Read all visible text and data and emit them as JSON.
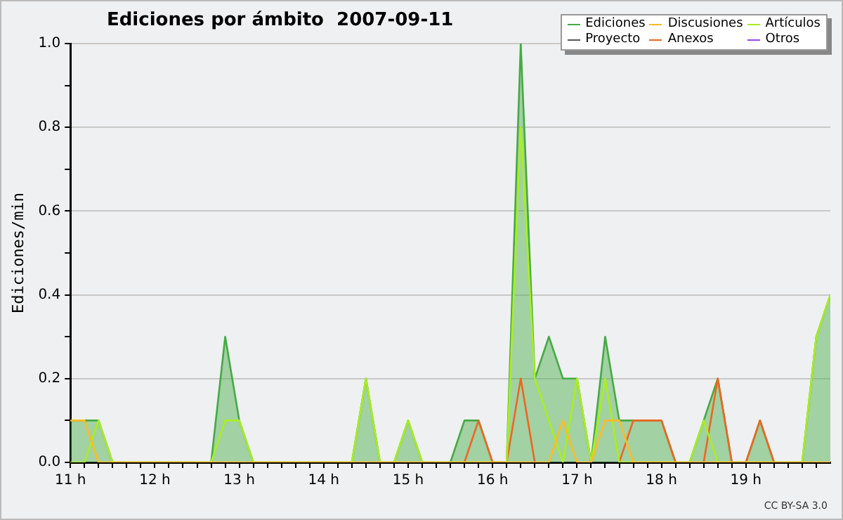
{
  "chart_data": {
    "type": "line",
    "title": "Ediciones por ámbito  2007-09-11",
    "ylabel": "Ediciones/min",
    "annotations": [
      "CC BY-SA 3.0"
    ],
    "legend": "top right",
    "grid": "y",
    "marker": "none",
    "xlim": [
      11,
      20
    ],
    "ylim": [
      0,
      1
    ],
    "xticks": [
      {
        "value": 11,
        "label": "11 h"
      },
      {
        "value": 11.1667,
        "label": null
      },
      {
        "value": 11.3333,
        "label": null
      },
      {
        "value": 11.5,
        "label": null
      },
      {
        "value": 11.6667,
        "label": null
      },
      {
        "value": 11.8333,
        "label": null
      },
      {
        "value": 12,
        "label": "12 h"
      },
      {
        "value": 12.1667,
        "label": null
      },
      {
        "value": 12.3333,
        "label": null
      },
      {
        "value": 12.5,
        "label": null
      },
      {
        "value": 12.6667,
        "label": null
      },
      {
        "value": 12.8333,
        "label": null
      },
      {
        "value": 13,
        "label": "13 h"
      },
      {
        "value": 13.1667,
        "label": null
      },
      {
        "value": 13.3333,
        "label": null
      },
      {
        "value": 13.5,
        "label": null
      },
      {
        "value": 13.6667,
        "label": null
      },
      {
        "value": 13.8333,
        "label": null
      },
      {
        "value": 14,
        "label": "14 h"
      },
      {
        "value": 14.1667,
        "label": null
      },
      {
        "value": 14.3333,
        "label": null
      },
      {
        "value": 14.5,
        "label": null
      },
      {
        "value": 14.6667,
        "label": null
      },
      {
        "value": 14.8333,
        "label": null
      },
      {
        "value": 15,
        "label": "15 h"
      },
      {
        "value": 15.1667,
        "label": null
      },
      {
        "value": 15.3333,
        "label": null
      },
      {
        "value": 15.5,
        "label": null
      },
      {
        "value": 15.6667,
        "label": null
      },
      {
        "value": 15.8333,
        "label": null
      },
      {
        "value": 16,
        "label": "16 h"
      },
      {
        "value": 16.1667,
        "label": null
      },
      {
        "value": 16.3333,
        "label": null
      },
      {
        "value": 16.5,
        "label": null
      },
      {
        "value": 16.6667,
        "label": null
      },
      {
        "value": 16.8333,
        "label": null
      },
      {
        "value": 17,
        "label": "17 h"
      },
      {
        "value": 17.1667,
        "label": null
      },
      {
        "value": 17.3333,
        "label": null
      },
      {
        "value": 17.5,
        "label": null
      },
      {
        "value": 17.6667,
        "label": null
      },
      {
        "value": 17.8333,
        "label": null
      },
      {
        "value": 18,
        "label": "18 h"
      },
      {
        "value": 18.1667,
        "label": null
      },
      {
        "value": 18.3333,
        "label": null
      },
      {
        "value": 18.5,
        "label": null
      },
      {
        "value": 18.6667,
        "label": null
      },
      {
        "value": 18.8333,
        "label": null
      },
      {
        "value": 19,
        "label": "19 h"
      },
      {
        "value": 19.1667,
        "label": null
      },
      {
        "value": 19.3333,
        "label": null
      },
      {
        "value": 19.5,
        "label": null
      },
      {
        "value": 19.6667,
        "label": null
      },
      {
        "value": 19.8333,
        "label": null
      }
    ],
    "yticks": [
      {
        "value": 0,
        "label": "0.0"
      },
      {
        "value": 0.1,
        "label": null
      },
      {
        "value": 0.2,
        "label": "0.2"
      },
      {
        "value": 0.3,
        "label": null
      },
      {
        "value": 0.4,
        "label": "0.4"
      },
      {
        "value": 0.5,
        "label": null
      },
      {
        "value": 0.6,
        "label": "0.6"
      },
      {
        "value": 0.7,
        "label": null
      },
      {
        "value": 0.8,
        "label": "0.8"
      },
      {
        "value": 0.9,
        "label": null
      },
      {
        "value": 1,
        "label": "1.0"
      }
    ],
    "x": [
      11,
      11.1667,
      11.3333,
      11.5,
      11.6667,
      11.8333,
      12,
      12.1667,
      12.3333,
      12.5,
      12.6667,
      12.8333,
      13,
      13.1667,
      13.3333,
      13.5,
      13.6667,
      13.8333,
      14,
      14.1667,
      14.3333,
      14.5,
      14.6667,
      14.8333,
      15,
      15.1667,
      15.3333,
      15.5,
      15.6667,
      15.8333,
      16,
      16.1667,
      16.3333,
      16.5,
      16.6667,
      16.8333,
      17,
      17.1667,
      17.3333,
      17.5,
      17.6667,
      17.8333,
      18,
      18.1667,
      18.3333,
      18.5,
      18.6667,
      18.8333,
      19,
      19.1667,
      19.3333,
      19.5,
      19.6667,
      19.8333,
      20
    ],
    "series": [
      {
        "name": "Ediciones",
        "type": "area",
        "color": "#44aa44",
        "values": [
          0.1,
          0.1,
          0.1,
          0,
          0,
          0,
          0,
          0,
          0,
          0,
          0,
          0.3,
          0.1,
          0,
          0,
          0,
          0,
          0,
          0,
          0,
          0,
          0.2,
          0,
          0,
          0.1,
          0,
          0,
          0,
          0.1,
          0.1,
          0,
          0,
          1,
          0.2,
          0.3,
          0.2,
          0.2,
          0,
          0.3,
          0.1,
          0.1,
          0.1,
          0.1,
          0,
          0,
          0.1,
          0.2,
          0,
          0,
          0.1,
          0,
          0,
          0,
          0.3,
          0.4
        ]
      },
      {
        "name": "Discusiones",
        "type": "line",
        "color": "#ffbb22",
        "values": [
          0.1,
          0.1,
          0,
          0,
          0,
          0,
          0,
          0,
          0,
          0,
          0,
          0,
          0,
          0,
          0,
          0,
          0,
          0,
          0,
          0,
          0,
          0,
          0,
          0,
          0,
          0,
          0,
          0,
          0,
          0,
          0,
          0,
          0,
          0,
          0,
          0.1,
          0,
          0,
          0.1,
          0.1,
          0,
          0,
          0,
          0,
          0,
          0,
          0,
          0,
          0,
          0,
          0,
          0,
          0,
          0,
          0
        ]
      },
      {
        "name": "Artículos",
        "type": "line",
        "color": "#aaee22",
        "values": [
          0,
          0,
          0.1,
          0,
          0,
          0,
          0,
          0,
          0,
          0,
          0,
          0.1,
          0.1,
          0,
          0,
          0,
          0,
          0,
          0,
          0,
          0,
          0.2,
          0,
          0,
          0.1,
          0,
          0,
          0,
          0,
          0,
          0,
          0,
          0.8,
          0.2,
          0.1,
          0,
          0.2,
          0,
          0.2,
          0,
          0,
          0,
          0,
          0,
          0,
          0.1,
          0,
          0,
          0,
          0,
          0,
          0,
          0,
          0.3,
          0.4
        ]
      },
      {
        "name": "Proyecto",
        "type": "line",
        "color": "#555555",
        "values": [
          null,
          null,
          null,
          null,
          null,
          null,
          null,
          null,
          null,
          null,
          null,
          null,
          null,
          null,
          null,
          null,
          null,
          null,
          null,
          null,
          null,
          null,
          null,
          null,
          null,
          null,
          null,
          null,
          null,
          null,
          null,
          null,
          null,
          null,
          null,
          null,
          null,
          null,
          null,
          null,
          null,
          null,
          null,
          null,
          null,
          null,
          null,
          null,
          null,
          null,
          null,
          null,
          null,
          null,
          null
        ]
      },
      {
        "name": "Anexos",
        "type": "line",
        "color": "#ee6622",
        "values": [
          null,
          null,
          null,
          null,
          null,
          null,
          null,
          null,
          null,
          null,
          null,
          null,
          null,
          null,
          null,
          null,
          null,
          null,
          null,
          null,
          null,
          null,
          null,
          null,
          null,
          null,
          null,
          null,
          0,
          0.1,
          0,
          0,
          0.2,
          0,
          null,
          null,
          null,
          null,
          null,
          0,
          0.1,
          0.1,
          0.1,
          0,
          null,
          0,
          0.2,
          0,
          0,
          0.1,
          0,
          null,
          null,
          null,
          null
        ]
      },
      {
        "name": "Otros",
        "type": "line",
        "color": "#9944ee",
        "values": [
          null,
          null,
          null,
          null,
          null,
          null,
          null,
          null,
          null,
          null,
          null,
          null,
          null,
          null,
          null,
          null,
          null,
          null,
          null,
          null,
          null,
          null,
          null,
          null,
          null,
          null,
          null,
          null,
          null,
          null,
          null,
          null,
          null,
          null,
          null,
          null,
          null,
          null,
          null,
          null,
          null,
          null,
          null,
          null,
          null,
          null,
          null,
          null,
          null,
          null,
          null,
          null,
          null,
          null,
          null
        ]
      }
    ]
  }
}
